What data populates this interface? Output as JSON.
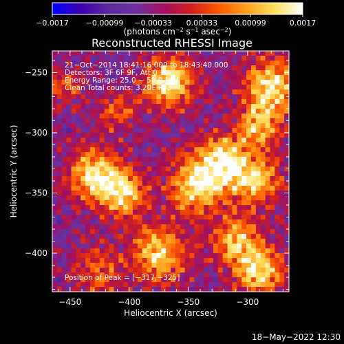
{
  "chart_data": {
    "type": "heatmap",
    "title": "Reconstructed RHESSI Image",
    "xlabel": "Heliocentric X (arcsec)",
    "ylabel": "Heliocentric Y (arcsec)",
    "xlim": [
      -465,
      -265
    ],
    "ylim": [
      -432,
      -232
    ],
    "x_ticks": [
      -450,
      -400,
      -350,
      -300
    ],
    "y_ticks": [
      -250,
      -300,
      -350,
      -400
    ],
    "x_tick_labels": [
      "−450",
      "−400",
      "−350",
      "−300"
    ],
    "y_tick_labels": [
      "−250",
      "−300",
      "−350",
      "−400"
    ],
    "colorbar": {
      "range": [
        -0.0017,
        0.0017
      ],
      "ticks": [
        -0.0017,
        -0.00099,
        -0.00033,
        0.00033,
        0.00099,
        0.0017
      ],
      "tick_labels": [
        "−0.0017",
        "−0.00099",
        "−0.00033",
        "0.00033",
        "0.00099",
        "0.0017"
      ],
      "unit_prefix": "(photons cm",
      "unit_exp1": "−2",
      "unit_mid1": " s",
      "unit_exp2": "−1",
      "unit_mid2": " asec",
      "unit_exp3": "−2",
      "unit_suffix": ")",
      "colormap": [
        "#0000ff",
        "#3a00b0",
        "#5a2a9a",
        "#7030a0",
        "#a01060",
        "#d02020",
        "#ff5a00",
        "#ffa020",
        "#ffe060",
        "#ffffff"
      ]
    },
    "info_lines": [
      "21−Oct−2014 18:41:16.000 to 18:43:40.000",
      "Detectors: 3F 6F 9F, Att 0",
      "Energy Range: 25.0 − 50.0 keV",
      "Clean    Total counts: 3.20E+03"
    ],
    "peak_label": "Position of Peak = [−317,−325]",
    "peak": [
      -317,
      -325
    ],
    "sources": [
      {
        "x": -366,
        "y": -258,
        "amp": 1.0,
        "r": 14
      },
      {
        "x": -280,
        "y": -262,
        "amp": 0.9,
        "r": 16
      },
      {
        "x": -290,
        "y": -295,
        "amp": 0.7,
        "r": 12
      },
      {
        "x": -430,
        "y": -335,
        "amp": 0.85,
        "r": 15
      },
      {
        "x": -405,
        "y": -350,
        "amp": 0.8,
        "r": 14
      },
      {
        "x": -320,
        "y": -325,
        "amp": 0.95,
        "r": 16
      },
      {
        "x": -345,
        "y": -345,
        "amp": 0.8,
        "r": 16
      },
      {
        "x": -292,
        "y": -340,
        "amp": 0.7,
        "r": 14
      },
      {
        "x": -375,
        "y": -400,
        "amp": 0.8,
        "r": 16
      },
      {
        "x": -310,
        "y": -390,
        "amp": 0.75,
        "r": 14
      },
      {
        "x": -290,
        "y": -415,
        "amp": 0.85,
        "r": 14
      },
      {
        "x": -425,
        "y": -415,
        "amp": 0.45,
        "r": 14
      },
      {
        "x": -410,
        "y": -282,
        "amp": 0.4,
        "r": 12
      },
      {
        "x": -455,
        "y": -262,
        "amp": 0.45,
        "r": 10
      }
    ]
  },
  "footer": {
    "date": "18−May−2022 12:30"
  }
}
